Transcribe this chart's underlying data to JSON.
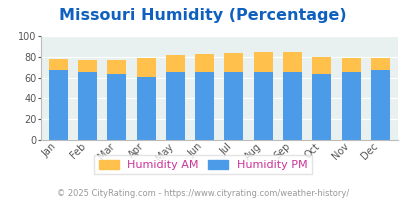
{
  "title": "Missouri Humidity (Percentage)",
  "months": [
    "Jan",
    "Feb",
    "Mar",
    "Apr",
    "May",
    "Jun",
    "Jul",
    "Aug",
    "Sep",
    "Oct",
    "Nov",
    "Dec"
  ],
  "humidity_pm": [
    67,
    65,
    63,
    61,
    65,
    65,
    65,
    65,
    65,
    63,
    65,
    67
  ],
  "humidity_am": [
    78,
    77,
    77,
    79,
    82,
    83,
    84,
    85,
    85,
    80,
    79,
    79
  ],
  "color_pm": "#4C9BE8",
  "color_am": "#FFC04C",
  "bg_plot": "#E8F0F0",
  "bg_fig": "#FFFFFF",
  "title_color": "#1060C0",
  "ylim": [
    0,
    100
  ],
  "yticks": [
    0,
    20,
    40,
    60,
    80,
    100
  ],
  "footer": "© 2025 CityRating.com - https://www.cityrating.com/weather-history/",
  "footer_color": "#999999",
  "legend_am_label": "Humidity AM",
  "legend_pm_label": "Humidity PM",
  "title_fontsize": 11.5,
  "tick_fontsize": 7,
  "footer_fontsize": 6,
  "legend_fontsize": 8,
  "legend_label_color": "#CC3399"
}
